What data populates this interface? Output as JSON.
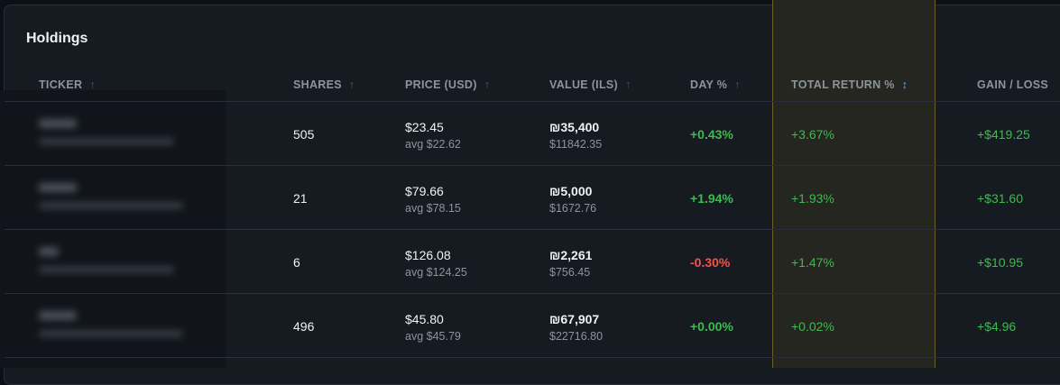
{
  "header": {
    "title": "Holdings"
  },
  "table": {
    "columns": [
      "TICKER",
      "SHARES",
      "PRICE (USD)",
      "VALUE (ILS)",
      "DAY %",
      "TOTAL RETURN %",
      "GAIN / LOSS"
    ],
    "rows": [
      {
        "shares": "505",
        "price": "$23.45",
        "avg": "avg $22.62",
        "value": "₪35,400",
        "value_usd": "$11842.35",
        "day": "+0.43%",
        "total_return": "+3.67%",
        "gain": "+$419.25"
      },
      {
        "shares": "21",
        "price": "$79.66",
        "avg": "avg $78.15",
        "value": "₪5,000",
        "value_usd": "$1672.76",
        "day": "+1.94%",
        "total_return": "+1.93%",
        "gain": "+$31.60"
      },
      {
        "shares": "6",
        "price": "$126.08",
        "avg": "avg $124.25",
        "value": "₪2,261",
        "value_usd": "$756.45",
        "day": "-0.30%",
        "total_return": "+1.47%",
        "gain": "+$10.95"
      },
      {
        "shares": "496",
        "price": "$45.80",
        "avg": "avg $45.79",
        "value": "₪67,907",
        "value_usd": "$22716.80",
        "day": "+0.00%",
        "total_return": "+0.02%",
        "gain": "+$4.96"
      }
    ]
  }
}
